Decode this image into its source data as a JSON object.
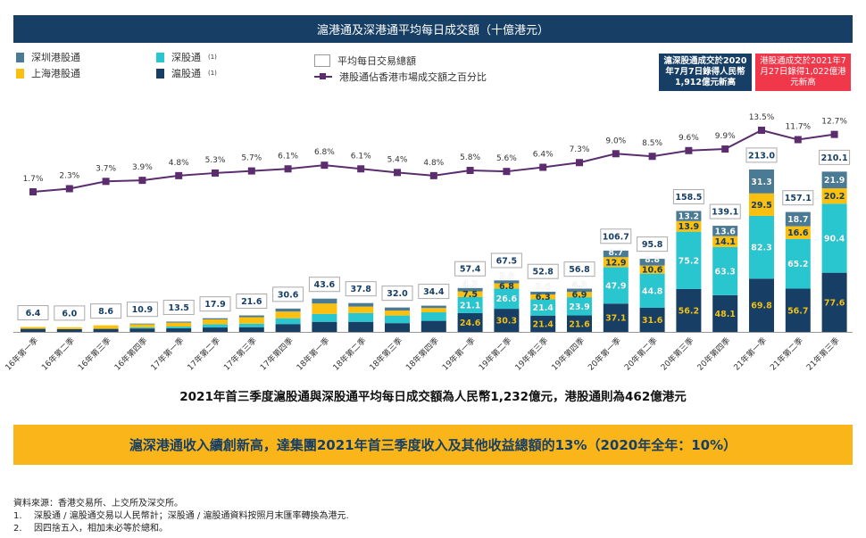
{
  "title": "滬港通及深港通平均每日成交額（十億港元）",
  "legend": {
    "sz_hk": "深圳港股通",
    "sh_hk": "上海港股通",
    "northbound_sz": "深股通",
    "northbound_sh": "滬股通",
    "footnote_mark": "(1)",
    "total": "平均每日交易總額",
    "line": "港股通佔香港市場成交額之百分比"
  },
  "callouts": [
    {
      "text": "滬深股通成交於2020年7月7日錄得人民幣1,912億元新高",
      "color": "#173f66"
    },
    {
      "text": "港股通成交於2021年7月27日錄得1,022億港元新高",
      "color": "#f0384a"
    }
  ],
  "chart_data": {
    "type": "bar+line",
    "stacked": true,
    "categories": [
      "16年第一季",
      "16年第二季",
      "16年第三季",
      "16年第四季",
      "17年第一季",
      "17年第二季",
      "17年第三季",
      "17年第四季",
      "18年第一季",
      "18年第二季",
      "18年第三季",
      "18年第四季",
      "19年第一季",
      "19年第二季",
      "19年第三季",
      "19年第四季",
      "20年第一季",
      "20年第二季",
      "20年第三季",
      "20年第四季",
      "21年第一季",
      "21年第二季",
      "21年第三季"
    ],
    "totals": [
      6.4,
      6.0,
      8.6,
      10.9,
      13.5,
      17.9,
      21.6,
      30.6,
      43.6,
      37.8,
      32.0,
      34.4,
      57.4,
      67.5,
      52.8,
      56.8,
      106.7,
      95.8,
      158.5,
      139.1,
      213.0,
      157.1,
      210.1
    ],
    "series": [
      {
        "name": "滬股通",
        "color": "#173f66",
        "label_color": "#f5c518",
        "values": [
          4.0,
          3.6,
          4.0,
          4.5,
          4.8,
          5.8,
          6.2,
          10.3,
          13.2,
          13.2,
          11.5,
          14.5,
          24.6,
          30.3,
          21.4,
          21.6,
          37.1,
          31.6,
          56.2,
          48.1,
          69.8,
          56.7,
          77.6
        ]
      },
      {
        "name": "深股通",
        "color": "#2ac6d0",
        "label_color": "#ffffff",
        "values": [
          0,
          0,
          0,
          1.5,
          2.2,
          4.3,
          4.6,
          7.6,
          10.3,
          11.6,
          10.0,
          11.2,
          21.1,
          26.6,
          21.4,
          23.9,
          47.9,
          44.8,
          75.2,
          63.3,
          82.3,
          65.2,
          90.4
        ]
      },
      {
        "name": "上海港股通",
        "color": "#fbbf0f",
        "label_color": "#173f66",
        "values": [
          2.4,
          2.4,
          4.6,
          4.0,
          5.2,
          6.3,
          8.5,
          8.8,
          13.7,
          8.4,
          6.5,
          5.6,
          7.5,
          6.8,
          6.3,
          6.9,
          12.9,
          10.6,
          13.9,
          14.1,
          29.5,
          16.6,
          20.2
        ]
      },
      {
        "name": "深圳港股通",
        "color": "#4a7a94",
        "label_color": "#ffffff",
        "values": [
          0,
          0,
          0,
          0.9,
          1.3,
          1.5,
          2.3,
          3.9,
          6.4,
          4.6,
          4.0,
          3.1,
          4.3,
          3.8,
          3.6,
          4.3,
          8.7,
          8.8,
          13.2,
          13.6,
          31.3,
          18.7,
          21.9
        ]
      }
    ],
    "labeled_from_index": 12,
    "line": {
      "name": "港股通佔香港市場成交額之百分比",
      "color": "#5b2d6e",
      "unit": "%",
      "values": [
        1.7,
        2.3,
        3.7,
        3.9,
        4.8,
        5.3,
        5.7,
        6.1,
        6.8,
        6.1,
        5.4,
        4.8,
        5.8,
        5.6,
        6.4,
        7.3,
        9.0,
        8.5,
        9.6,
        9.9,
        13.5,
        11.7,
        12.7
      ]
    },
    "grid": false
  },
  "headline": "2021年首三季度滬股通與深股通平均每日成交額為人民幣1,232億元，港股通則為462億港元",
  "banner": "滬深港通收入續創新高，達集團2021年首三季度收入及其他收益總額的13%（2020年全年：10%）",
  "notes": {
    "source": "資料來源：香港交易所、上交所及深交所。",
    "items": [
      {
        "num": "1.",
        "text": "深股通 / 滬股通交易以人民幣計；深股通 / 滬股通資料按照月末匯率轉換為港元."
      },
      {
        "num": "2.",
        "text": "因四捨五入，相加未必等於總和。"
      }
    ]
  }
}
